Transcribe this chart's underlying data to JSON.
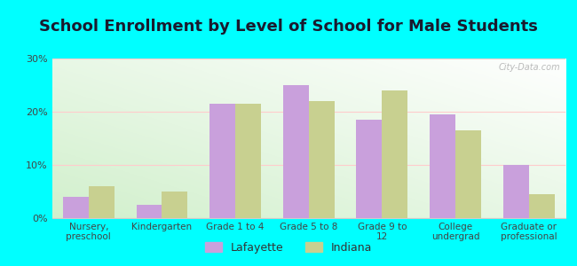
{
  "title": "School Enrollment by Level of School for Male Students",
  "categories": [
    "Nursery,\npreschool",
    "Kindergarten",
    "Grade 1 to 4",
    "Grade 5 to 8",
    "Grade 9 to\n12",
    "College\nundergrad",
    "Graduate or\nprofessional"
  ],
  "lafayette": [
    4.0,
    2.5,
    21.5,
    25.0,
    18.5,
    19.5,
    10.0
  ],
  "indiana": [
    6.0,
    5.0,
    21.5,
    22.0,
    24.0,
    16.5,
    4.5
  ],
  "lafayette_color": "#c9a0dc",
  "indiana_color": "#c8d090",
  "background_color": "#00ffff",
  "ylim": [
    0,
    30
  ],
  "yticks": [
    0,
    10,
    20,
    30
  ],
  "ytick_labels": [
    "0%",
    "10%",
    "20%",
    "30%"
  ],
  "legend_labels": [
    "Lafayette",
    "Indiana"
  ],
  "bar_width": 0.35,
  "title_fontsize": 13,
  "watermark": "City-Data.com"
}
